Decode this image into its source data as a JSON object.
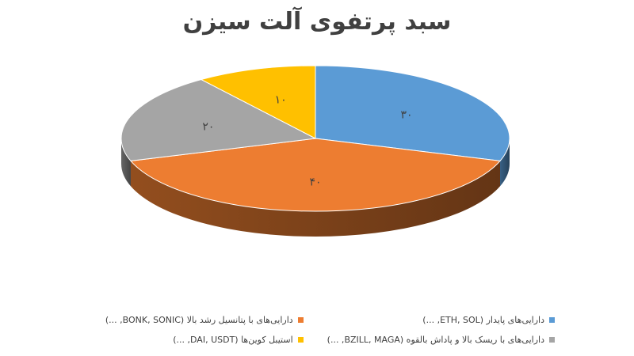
{
  "chart_data": {
    "type": "pie",
    "title": "سبد پرتفوی آلت سیزن",
    "slices": [
      {
        "label": "دارایی‌های پایدار (ETH, SOL, ...)",
        "value": 30,
        "value_label": "۳۰",
        "color": "#5B9BD5"
      },
      {
        "label": "دارایی‌های با پتانسیل رشد بالا (BONK, SONIC, ...)",
        "value": 40,
        "value_label": "۴۰",
        "color": "#ED7D31"
      },
      {
        "label": "دارایی‌های با ریسک بالا و پاداش بالقوه (BZILL, MAGA, ...)",
        "value": 20,
        "value_label": "۲۰",
        "color": "#A5A5A5"
      },
      {
        "label": "استیبل کوین‌ها (DAI, USDT, ...)",
        "value": 10,
        "value_label": "۱۰",
        "color": "#FFC000"
      }
    ],
    "legend_position": "bottom",
    "style": "3d"
  }
}
